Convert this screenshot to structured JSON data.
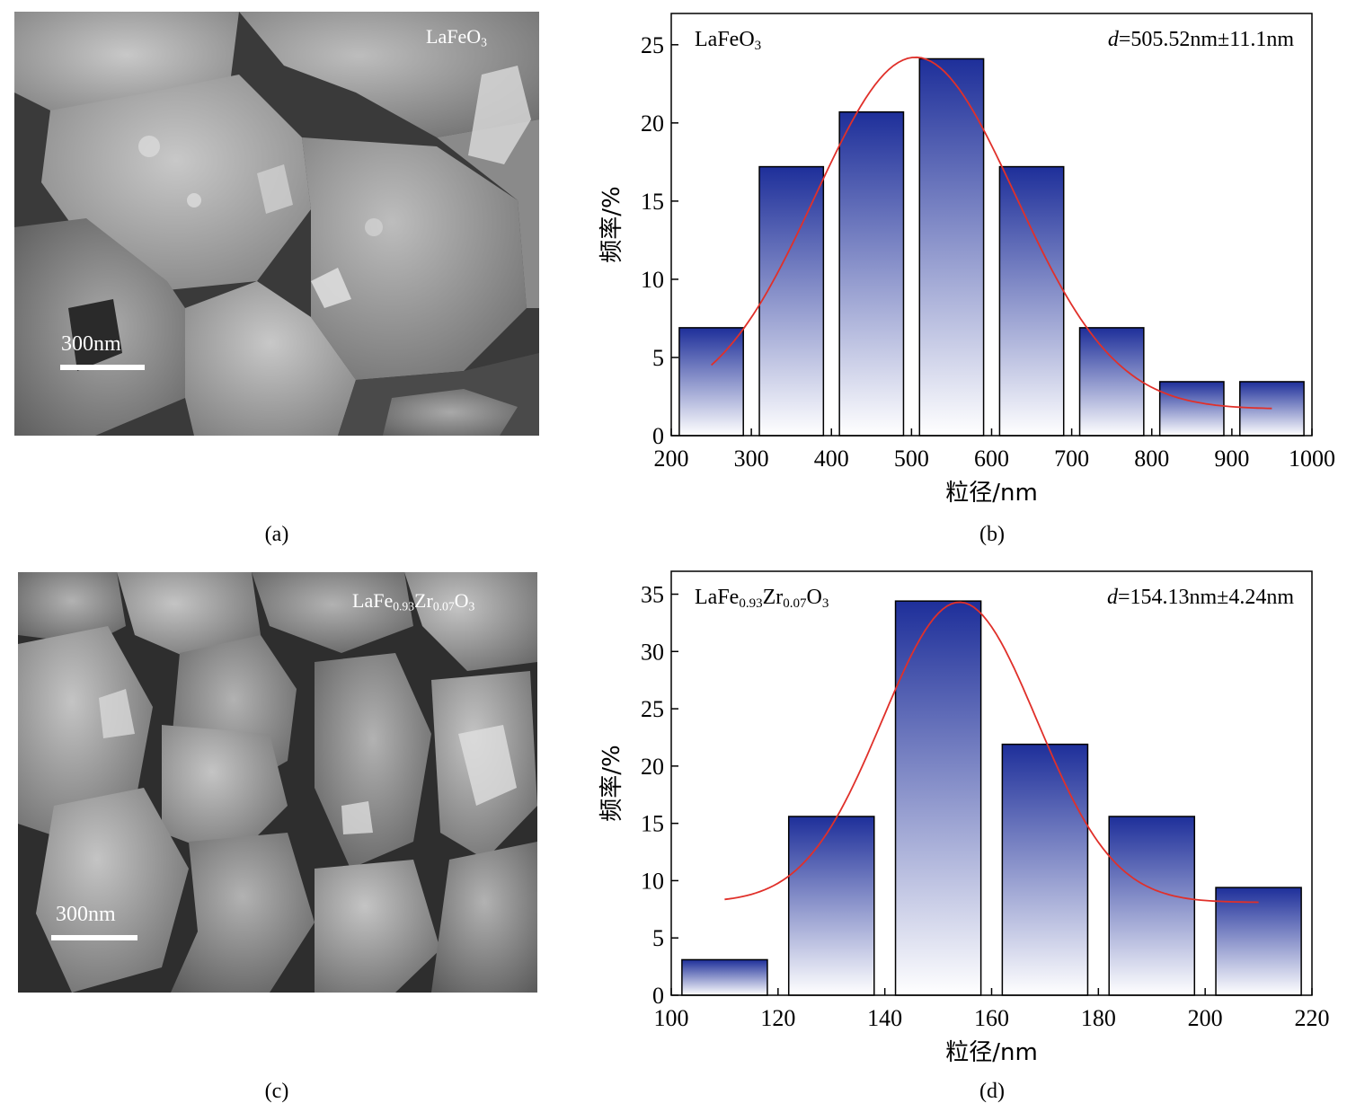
{
  "panels": {
    "a": {
      "label": "(a)",
      "sample": {
        "base": "LaFeO",
        "sub": "3"
      },
      "scale_bar": "300nm"
    },
    "b": {
      "label": "(b)"
    },
    "c": {
      "label": "(c)",
      "sample": {
        "p1": "LaFe",
        "s1": "0.93",
        "p2": "Zr",
        "s2": "0.07",
        "p3": "O",
        "s3": "3"
      },
      "scale_bar": "300nm"
    },
    "d": {
      "label": "(d)"
    }
  },
  "colors": {
    "bar_top": "#1e2f9a",
    "bar_bottom": "#ffffff",
    "fit_curve": "#e0302a",
    "axis": "#000000"
  },
  "chart_data": [
    {
      "type": "bar",
      "sample_label": {
        "base": "LaFeO",
        "sub": "3"
      },
      "annotation": {
        "var": "d",
        "text": "=505.52nm±11.1nm"
      },
      "xlabel": "粒径/nm",
      "ylabel": "频率/%",
      "xlim": [
        200,
        1000
      ],
      "ylim": [
        0,
        27
      ],
      "xticks": [
        200,
        300,
        400,
        500,
        600,
        700,
        800,
        900,
        1000
      ],
      "yticks": [
        0,
        5,
        10,
        15,
        20,
        25
      ],
      "bins": [
        [
          210,
          290
        ],
        [
          310,
          390
        ],
        [
          410,
          490
        ],
        [
          510,
          590
        ],
        [
          610,
          690
        ],
        [
          710,
          790
        ],
        [
          810,
          890
        ],
        [
          910,
          990
        ]
      ],
      "values": [
        6.9,
        17.2,
        20.7,
        24.1,
        17.2,
        6.9,
        3.45,
        3.45
      ],
      "fit_curve": {
        "type": "gaussian",
        "x_from": 250,
        "x_to": 950,
        "mean": 505,
        "sd": 125,
        "amplitude": 22.5,
        "baseline": 1.7
      }
    },
    {
      "type": "bar",
      "sample_label": {
        "p1": "LaFe",
        "s1": "0.93",
        "p2": "Zr",
        "s2": "0.07",
        "p3": "O",
        "s3": "3"
      },
      "annotation": {
        "var": "d",
        "text": "=154.13nm±4.24nm"
      },
      "xlabel": "粒径/nm",
      "ylabel": "频率/%",
      "xlim": [
        100,
        220
      ],
      "ylim": [
        0,
        37
      ],
      "xticks": [
        100,
        120,
        140,
        160,
        180,
        200,
        220
      ],
      "yticks": [
        0,
        5,
        10,
        15,
        20,
        25,
        30,
        35
      ],
      "bins": [
        [
          102,
          118
        ],
        [
          122,
          138
        ],
        [
          142,
          158
        ],
        [
          162,
          178
        ],
        [
          182,
          198
        ],
        [
          202,
          218
        ]
      ],
      "values": [
        3.1,
        15.6,
        34.4,
        21.9,
        15.6,
        9.4
      ],
      "fit_curve": {
        "type": "gaussian",
        "x_from": 110,
        "x_to": 210,
        "mean": 154,
        "sd": 14.5,
        "amplitude": 26.2,
        "baseline": 8.1
      }
    }
  ]
}
